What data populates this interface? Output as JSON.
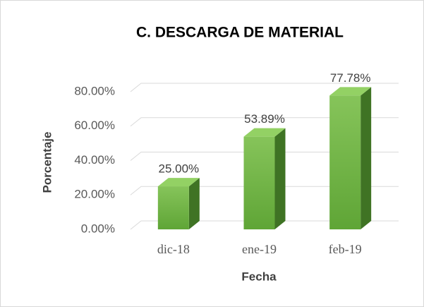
{
  "chart_data": {
    "type": "bar3d",
    "title": "C. DESCARGA DE MATERIAL",
    "x_label": "Fecha",
    "y_label": "Porcentaje",
    "categories": [
      "dic-18",
      "ene-19",
      "feb-19"
    ],
    "values": [
      25,
      53.89,
      77.78
    ],
    "value_labels": [
      "25.00%",
      "53.89%",
      "77.78%"
    ],
    "color": "#6cb33f",
    "ylim": [
      0,
      80
    ],
    "yticks": [
      {
        "value": 0,
        "label": "0.00%"
      },
      {
        "value": 20,
        "label": "20.00%"
      },
      {
        "value": 40,
        "label": "40.00%"
      },
      {
        "value": 60,
        "label": "60.00%"
      },
      {
        "value": 80,
        "label": "80.00%"
      }
    ],
    "grid": true
  }
}
